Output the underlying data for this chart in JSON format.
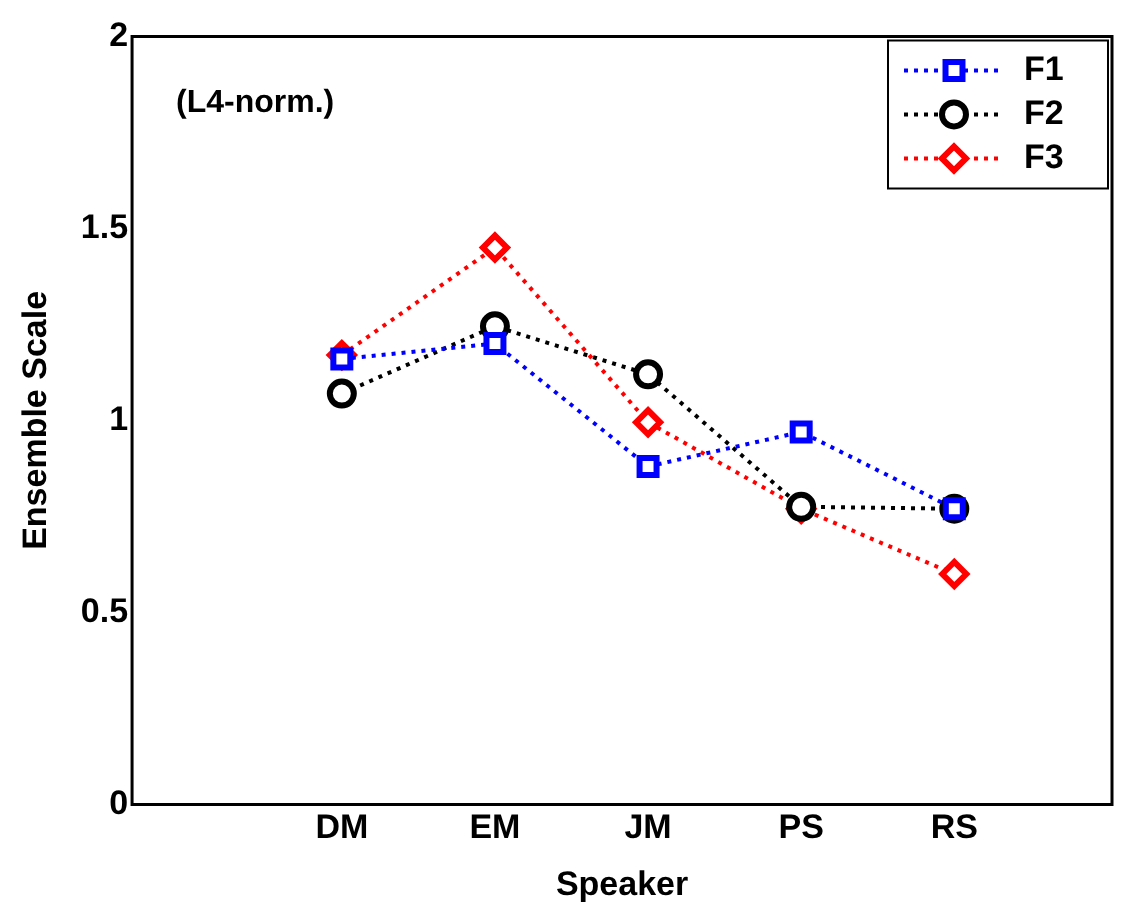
{
  "chart_data": {
    "type": "line",
    "xlabel": "Speaker",
    "ylabel": "Ensemble Scale",
    "annotations": [
      "(L4-norm.)"
    ],
    "categories": [
      "DM",
      "EM",
      "JM",
      "PS",
      "RS"
    ],
    "series": [
      {
        "name": "F1",
        "color": "#0000ff",
        "marker": "square",
        "values": [
          1.16,
          1.2,
          0.88,
          0.97,
          0.77
        ]
      },
      {
        "name": "F2",
        "color": "#000000",
        "marker": "circle",
        "values": [
          1.07,
          1.245,
          1.12,
          0.775,
          0.77
        ]
      },
      {
        "name": "F3",
        "color": "#ff0000",
        "marker": "diamond",
        "values": [
          1.17,
          1.45,
          0.995,
          0.77,
          0.6
        ]
      }
    ],
    "ylim": [
      0,
      2
    ],
    "yticks": [
      0,
      0.5,
      1,
      1.5,
      2
    ],
    "grid": false,
    "legend": "top right",
    "line_style": "dotted"
  }
}
